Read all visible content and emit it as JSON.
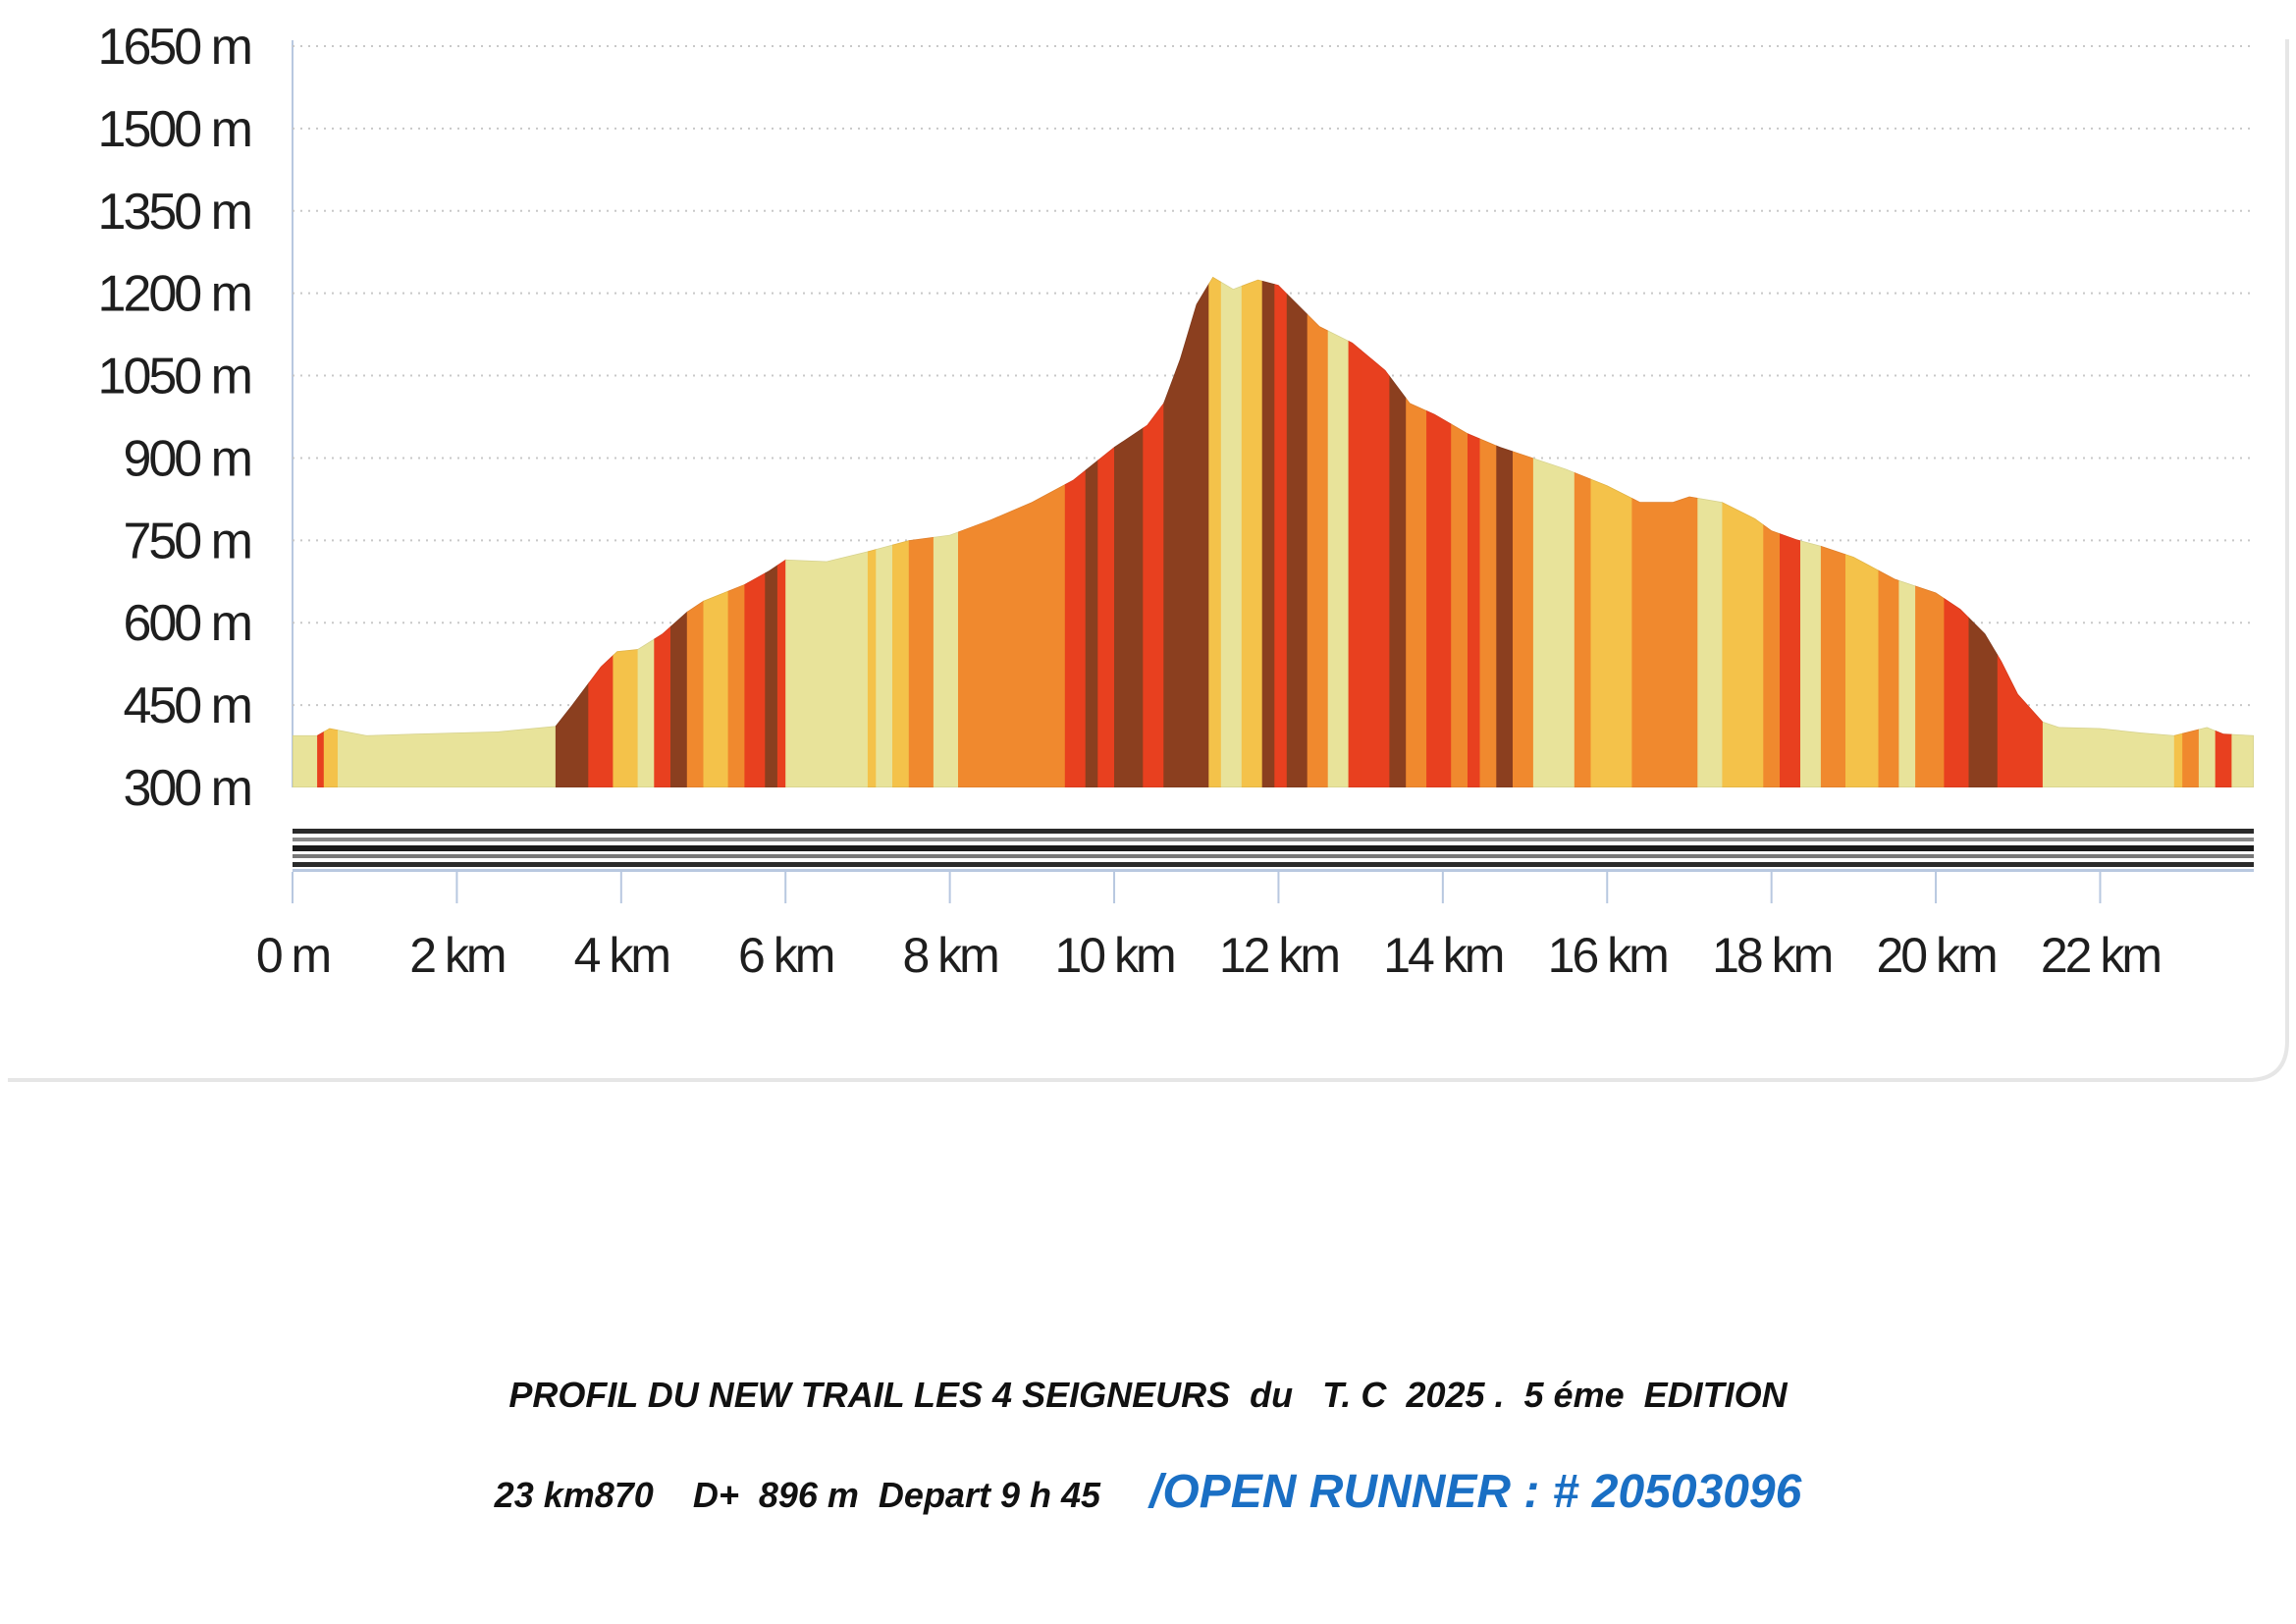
{
  "colors": {
    "background": "#ffffff",
    "grid": "#c8c8c8",
    "axis": "#b8c8e0",
    "caption_text": "#111111",
    "runner_link": "#1a6fc4",
    "slope_palette": [
      "#e8e39a",
      "#f4c24a",
      "#f0892e",
      "#e8401f",
      "#8b3f1f"
    ]
  },
  "chart_data": {
    "type": "area",
    "title": "",
    "xlabel": "",
    "ylabel": "",
    "xlim": [
      0,
      23.87
    ],
    "ylim": [
      300,
      1650
    ],
    "grid": true,
    "y_ticks": [
      {
        "value": 1650,
        "label": "1650 m"
      },
      {
        "value": 1500,
        "label": "1500 m"
      },
      {
        "value": 1350,
        "label": "1350 m"
      },
      {
        "value": 1200,
        "label": "1200 m"
      },
      {
        "value": 1050,
        "label": "1050 m"
      },
      {
        "value": 900,
        "label": "900 m"
      },
      {
        "value": 750,
        "label": "750 m"
      },
      {
        "value": 600,
        "label": "600 m"
      },
      {
        "value": 450,
        "label": "450 m"
      },
      {
        "value": 300,
        "label": "300 m"
      }
    ],
    "x_ticks": [
      {
        "value": 0,
        "label": "0 m"
      },
      {
        "value": 2,
        "label": "2 km"
      },
      {
        "value": 4,
        "label": "4 km"
      },
      {
        "value": 6,
        "label": "6 km"
      },
      {
        "value": 8,
        "label": "8 km"
      },
      {
        "value": 10,
        "label": "10 km"
      },
      {
        "value": 12,
        "label": "12 km"
      },
      {
        "value": 14,
        "label": "14 km"
      },
      {
        "value": 16,
        "label": "16 km"
      },
      {
        "value": 18,
        "label": "18 km"
      },
      {
        "value": 20,
        "label": "20 km"
      },
      {
        "value": 22,
        "label": "22 km"
      }
    ],
    "series": [
      {
        "distance_km": [
          0,
          0.3,
          0.45,
          0.9,
          1.5,
          2.5,
          3.2,
          3.4,
          3.75,
          3.95,
          4.2,
          4.5,
          4.8,
          5.0,
          5.5,
          5.8,
          6.0,
          6.5,
          7.0,
          7.5,
          8.0,
          8.5,
          9.0,
          9.5,
          10.0,
          10.4,
          10.6,
          10.8,
          11.0,
          11.2,
          11.45,
          11.75,
          12.0,
          12.1,
          12.5,
          12.9,
          13.3,
          13.6,
          13.9,
          14.3,
          14.7,
          15.0,
          15.5,
          16.0,
          16.4,
          16.8,
          17.0,
          17.4,
          17.8,
          18.0,
          18.3,
          18.6,
          19.0,
          19.5,
          20.0,
          20.3,
          20.6,
          20.8,
          21.0,
          21.3,
          21.5,
          22.0,
          22.5,
          22.9,
          23.3,
          23.5,
          23.87
        ],
        "elevation_m": [
          395,
          395,
          408,
          395,
          398,
          402,
          412,
          450,
          520,
          548,
          552,
          580,
          620,
          640,
          670,
          695,
          715,
          712,
          730,
          750,
          760,
          788,
          820,
          860,
          920,
          960,
          1000,
          1080,
          1180,
          1230,
          1208,
          1225,
          1215,
          1200,
          1140,
          1110,
          1060,
          1000,
          980,
          945,
          920,
          905,
          880,
          850,
          820,
          820,
          830,
          820,
          790,
          768,
          752,
          740,
          720,
          680,
          655,
          625,
          580,
          530,
          470,
          420,
          410,
          408,
          400,
          395,
          410,
          398,
          395
        ]
      }
    ],
    "slope_bands": {
      "x_start_km": [
        0,
        0.3,
        0.38,
        0.55,
        0.9,
        3.2,
        3.6,
        3.9,
        4.2,
        4.4,
        4.6,
        4.8,
        5.0,
        5.3,
        5.5,
        5.75,
        5.9,
        6.0,
        7.0,
        7.1,
        7.3,
        7.5,
        7.8,
        8.1,
        9.4,
        9.65,
        9.8,
        10.0,
        10.35,
        10.6,
        11.15,
        11.3,
        11.55,
        11.8,
        11.95,
        12.1,
        12.35,
        12.6,
        12.85,
        13.0,
        13.35,
        13.55,
        13.8,
        14.1,
        14.3,
        14.45,
        14.65,
        14.85,
        15.1,
        15.6,
        15.8,
        16.3,
        17.1,
        17.4,
        17.9,
        18.1,
        18.35,
        18.6,
        18.9,
        19.3,
        19.55,
        19.75,
        20.1,
        20.4,
        20.75,
        21.3,
        21.5,
        22.9,
        23.0,
        23.2,
        23.4,
        23.6
      ],
      "classes": [
        0,
        3,
        1,
        0,
        0,
        4,
        3,
        1,
        0,
        3,
        4,
        2,
        1,
        2,
        3,
        4,
        3,
        0,
        1,
        0,
        1,
        2,
        0,
        2,
        3,
        4,
        3,
        4,
        3,
        4,
        1,
        0,
        1,
        4,
        3,
        4,
        2,
        0,
        3,
        3,
        4,
        2,
        3,
        2,
        3,
        2,
        4,
        2,
        0,
        2,
        1,
        2,
        0,
        1,
        2,
        3,
        0,
        2,
        1,
        2,
        0,
        2,
        3,
        4,
        3,
        0,
        0,
        1,
        2,
        0,
        3,
        0
      ]
    }
  },
  "caption": {
    "line1": "PROFIL DU NEW TRAIL LES 4 SEIGNEURS  du   T. C  2025 .  5 éme  EDITION",
    "line2": "23 km870    D+  896 m  Depart 9 h 45",
    "runner": "/OPEN RUNNER : # 20503096"
  }
}
